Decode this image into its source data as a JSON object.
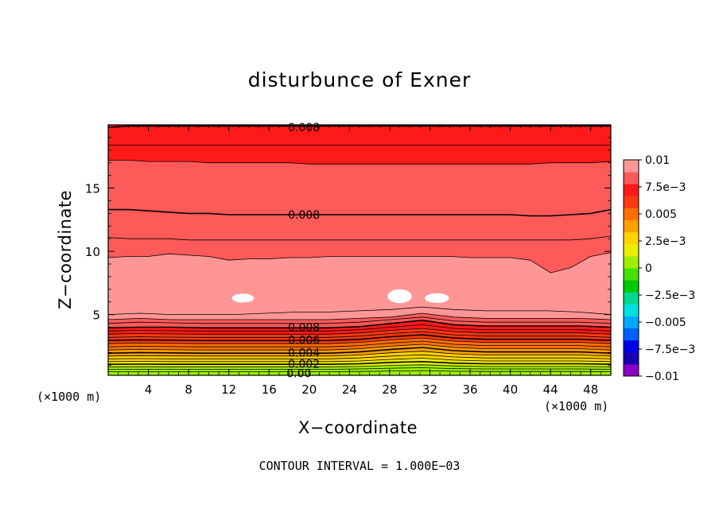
{
  "chart_data": {
    "type": "contour",
    "title": "disturbunce of Exner",
    "xlabel": "X−coordinate",
    "ylabel": "Z−coordinate",
    "x_unit": "(×1000 m)",
    "y_unit": "(×1000 m)",
    "xlim": [
      0,
      50
    ],
    "ylim": [
      0.2,
      20
    ],
    "x_ticks": [
      4,
      8,
      12,
      16,
      20,
      24,
      28,
      32,
      36,
      40,
      44,
      48
    ],
    "y_ticks": [
      5,
      10,
      15
    ],
    "footer": "CONTOUR INTERVAL =  1.000E−03",
    "colorbar": {
      "ticks": [
        {
          "value": 0.01,
          "label": "0.01"
        },
        {
          "value": 0.0075,
          "label": "7.5e−3"
        },
        {
          "value": 0.005,
          "label": "0.005"
        },
        {
          "value": 0.0025,
          "label": "2.5e−3"
        },
        {
          "value": 0,
          "label": "0"
        },
        {
          "value": -0.0025,
          "label": "−2.5e−3"
        },
        {
          "value": -0.005,
          "label": "−0.005"
        },
        {
          "value": -0.0075,
          "label": "−7.5e−3"
        },
        {
          "value": -0.01,
          "label": "−0.01"
        }
      ],
      "colors": [
        "#8a00c8",
        "#1a00b4",
        "#0000e6",
        "#0060ff",
        "#00a8ff",
        "#00e0e0",
        "#00d890",
        "#00c800",
        "#44e000",
        "#9ef000",
        "#e8f000",
        "#ffd200",
        "#ffa000",
        "#ff7000",
        "#ff3a10",
        "#ff1a1a",
        "#ff5a5a",
        "#ff9696"
      ]
    },
    "contour_labels": [
      {
        "text": "0.008",
        "x": 19,
        "z": 19.8
      },
      {
        "text": "0.008",
        "x": 19,
        "z": 12.9
      },
      {
        "text": "0.008",
        "x": 19,
        "z": 4.0
      },
      {
        "text": "0.006",
        "x": 19,
        "z": 3.0
      },
      {
        "text": "0.004",
        "x": 19,
        "z": 2.0
      },
      {
        "text": "0.002",
        "x": 19,
        "z": 1.1
      },
      {
        "text": "0.00",
        "x": 18.5,
        "z": 0.35
      }
    ],
    "level_lines": [
      {
        "level": 0.0095,
        "z": [
          5.0,
          5.1,
          5.0,
          5.0,
          5.0,
          5.1,
          5.2,
          5.2,
          5.3,
          5.4,
          5.6,
          5.4,
          5.3,
          5.3,
          5.3,
          5.2,
          5.0
        ]
      },
      {
        "level": 0.009,
        "z": [
          4.6,
          4.7,
          4.6,
          4.6,
          4.6,
          4.6,
          4.6,
          4.6,
          4.7,
          4.8,
          5.1,
          4.8,
          4.7,
          4.7,
          4.7,
          4.7,
          4.6
        ]
      },
      {
        "level": 0.0085,
        "z": [
          4.3,
          4.4,
          4.35,
          4.3,
          4.3,
          4.3,
          4.3,
          4.3,
          4.4,
          4.6,
          4.8,
          4.5,
          4.4,
          4.4,
          4.4,
          4.4,
          4.3
        ]
      },
      {
        "level": 0.008,
        "z": [
          3.95,
          4.0,
          4.0,
          3.95,
          3.95,
          3.95,
          3.95,
          3.95,
          4.05,
          4.3,
          4.55,
          4.2,
          4.1,
          4.1,
          4.1,
          4.1,
          4.0
        ]
      },
      {
        "level": 0.0075,
        "z": [
          3.7,
          3.75,
          3.72,
          3.7,
          3.7,
          3.7,
          3.7,
          3.7,
          3.8,
          4.0,
          4.2,
          3.9,
          3.8,
          3.8,
          3.8,
          3.8,
          3.7
        ]
      },
      {
        "level": 0.007,
        "z": [
          3.45,
          3.5,
          3.47,
          3.45,
          3.45,
          3.45,
          3.45,
          3.45,
          3.55,
          3.75,
          3.9,
          3.65,
          3.55,
          3.55,
          3.55,
          3.55,
          3.45
        ]
      },
      {
        "level": 0.0065,
        "z": [
          3.2,
          3.25,
          3.22,
          3.2,
          3.2,
          3.2,
          3.2,
          3.2,
          3.3,
          3.5,
          3.65,
          3.4,
          3.3,
          3.3,
          3.3,
          3.3,
          3.2
        ]
      },
      {
        "level": 0.006,
        "z": [
          2.95,
          3.0,
          2.97,
          2.95,
          2.95,
          2.95,
          2.95,
          2.95,
          3.05,
          3.25,
          3.4,
          3.15,
          3.05,
          3.05,
          3.05,
          3.05,
          2.95
        ]
      },
      {
        "level": 0.0055,
        "z": [
          2.7,
          2.75,
          2.72,
          2.7,
          2.7,
          2.7,
          2.7,
          2.7,
          2.8,
          3.0,
          3.15,
          2.9,
          2.8,
          2.8,
          2.8,
          2.8,
          2.7
        ]
      },
      {
        "level": 0.005,
        "z": [
          2.45,
          2.5,
          2.47,
          2.45,
          2.45,
          2.45,
          2.45,
          2.45,
          2.55,
          2.75,
          2.9,
          2.65,
          2.55,
          2.55,
          2.55,
          2.55,
          2.45
        ]
      },
      {
        "level": 0.0045,
        "z": [
          2.2,
          2.25,
          2.22,
          2.2,
          2.2,
          2.2,
          2.2,
          2.2,
          2.3,
          2.5,
          2.65,
          2.4,
          2.3,
          2.3,
          2.3,
          2.3,
          2.2
        ]
      },
      {
        "level": 0.004,
        "z": [
          1.95,
          2.0,
          1.97,
          1.95,
          1.95,
          1.95,
          1.95,
          1.95,
          2.05,
          2.25,
          2.4,
          2.15,
          2.05,
          2.05,
          2.05,
          2.05,
          1.95
        ]
      },
      {
        "level": 0.0035,
        "z": [
          1.72,
          1.75,
          1.73,
          1.72,
          1.72,
          1.72,
          1.72,
          1.72,
          1.8,
          1.98,
          2.1,
          1.9,
          1.8,
          1.8,
          1.8,
          1.8,
          1.72
        ]
      },
      {
        "level": 0.003,
        "z": [
          1.5,
          1.52,
          1.5,
          1.5,
          1.5,
          1.5,
          1.5,
          1.5,
          1.57,
          1.72,
          1.82,
          1.65,
          1.57,
          1.57,
          1.57,
          1.57,
          1.5
        ]
      },
      {
        "level": 0.0025,
        "z": [
          1.28,
          1.3,
          1.28,
          1.28,
          1.28,
          1.28,
          1.28,
          1.28,
          1.33,
          1.46,
          1.55,
          1.4,
          1.33,
          1.33,
          1.33,
          1.33,
          1.28
        ]
      },
      {
        "level": 0.002,
        "z": [
          1.07,
          1.08,
          1.07,
          1.07,
          1.07,
          1.07,
          1.07,
          1.07,
          1.11,
          1.22,
          1.28,
          1.16,
          1.11,
          1.11,
          1.11,
          1.11,
          1.07
        ]
      },
      {
        "level": 0.0015,
        "z": [
          0.87,
          0.88,
          0.87,
          0.87,
          0.87,
          0.87,
          0.87,
          0.87,
          0.9,
          0.98,
          1.03,
          0.94,
          0.9,
          0.9,
          0.9,
          0.9,
          0.87
        ]
      },
      {
        "level": 0.001,
        "z": [
          0.67,
          0.68,
          0.67,
          0.67,
          0.67,
          0.67,
          0.67,
          0.67,
          0.7,
          0.76,
          0.8,
          0.73,
          0.7,
          0.7,
          0.7,
          0.7,
          0.67
        ]
      },
      {
        "level": 0.0005,
        "z": [
          0.48,
          0.49,
          0.48,
          0.48,
          0.48,
          0.48,
          0.48,
          0.48,
          0.5,
          0.54,
          0.57,
          0.52,
          0.5,
          0.5,
          0.5,
          0.5,
          0.48
        ]
      }
    ],
    "upper_lines": [
      {
        "level": 0.0095,
        "z": [
          9.5,
          9.6,
          9.6,
          9.8,
          9.7,
          9.6,
          9.3,
          9.4,
          9.4,
          9.5,
          9.5,
          9.6,
          9.6,
          9.6,
          9.6,
          9.6,
          9.6,
          9.6,
          9.5,
          9.5,
          9.5,
          9.3,
          8.3,
          8.7,
          9.6,
          9.9
        ]
      },
      {
        "level": 0.0085,
        "z": [
          11.1,
          11.0,
          11.0,
          11.0,
          10.9,
          10.9,
          10.9,
          10.9,
          10.9,
          10.9,
          10.9,
          10.9,
          10.9,
          10.9,
          10.9,
          10.9,
          10.9,
          10.9,
          10.9,
          10.9,
          10.9,
          10.9,
          10.9,
          10.9,
          11.0,
          11.2
        ]
      },
      {
        "level": 0.008,
        "z": [
          13.3,
          13.3,
          13.2,
          13.1,
          13.0,
          13.0,
          12.9,
          12.9,
          12.9,
          12.9,
          12.9,
          12.9,
          12.9,
          12.9,
          12.9,
          12.9,
          12.9,
          12.9,
          12.9,
          12.9,
          12.9,
          12.8,
          12.8,
          12.9,
          13.0,
          13.3
        ]
      },
      {
        "level": 0.0075,
        "z": [
          17.2,
          17.2,
          17.1,
          17.1,
          17.1,
          17.0,
          17.0,
          17.0,
          17.0,
          17.0,
          16.9,
          16.9,
          16.9,
          16.9,
          16.9,
          16.9,
          16.9,
          16.9,
          16.9,
          16.9,
          16.9,
          16.9,
          17.0,
          17.0,
          17.0,
          17.1
        ]
      },
      {
        "level": 0.007,
        "z": [
          18.4,
          18.4,
          18.4,
          18.4,
          18.4,
          18.4,
          18.4,
          18.4,
          18.4,
          18.4,
          18.4,
          18.4,
          18.4,
          18.4,
          18.4,
          18.4,
          18.4,
          18.4,
          18.4,
          18.4,
          18.4,
          18.4,
          18.4,
          18.4,
          18.4,
          18.4
        ]
      },
      {
        "level": 0.008,
        "z": [
          19.8,
          19.9,
          19.9,
          19.9,
          19.9,
          19.9,
          19.9,
          19.9,
          19.9,
          19.9,
          19.9,
          19.9,
          19.9,
          19.9,
          19.9,
          19.9,
          19.9,
          19.9,
          19.9,
          19.9,
          19.9,
          19.9,
          19.9,
          19.9,
          19.9,
          19.9
        ]
      }
    ],
    "max_patches": [
      {
        "x": 13.4,
        "z": 6.3,
        "rx": 1.1,
        "rz": 0.35
      },
      {
        "x": 29.0,
        "z": 6.45,
        "rx": 1.2,
        "rz": 0.55
      },
      {
        "x": 32.7,
        "z": 6.3,
        "rx": 1.2,
        "rz": 0.38
      }
    ]
  }
}
